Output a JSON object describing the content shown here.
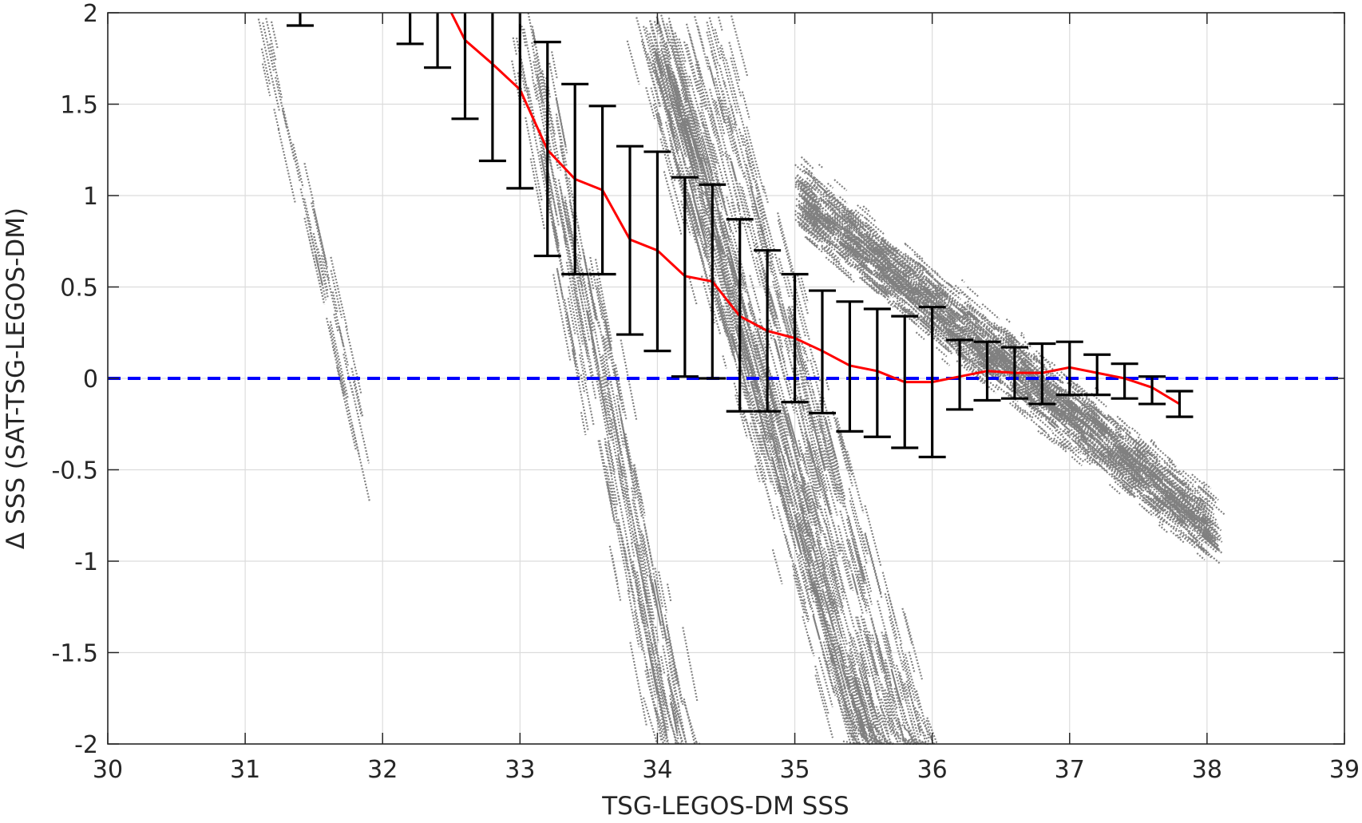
{
  "chart_data": {
    "type": "scatter",
    "title": "",
    "xlabel": "TSG-LEGOS-DM SSS",
    "ylabel": "Δ SSS (SAT-TSG-LEGOS-DM)",
    "xlim": [
      30,
      39
    ],
    "ylim": [
      -2,
      2
    ],
    "xticks": [
      "30",
      "31",
      "32",
      "33",
      "34",
      "35",
      "36",
      "37",
      "38",
      "39"
    ],
    "yticks": [
      "-2",
      "-1.5",
      "-1",
      "-0.5",
      "0",
      "0.5",
      "1",
      "1.5",
      "2"
    ],
    "grid": true,
    "colors": {
      "scatter": "#808080",
      "mean_line": "#ff0000",
      "zero_line": "#0000ff",
      "error_bars": "#000000",
      "grid": "#dcdcdc",
      "axes": "#262626"
    },
    "series": [
      {
        "type": "scatter",
        "description_free": true,
        "clusters": [
          {
            "x": [
              30.9,
              31.8
            ],
            "slope": -3.0,
            "center": [
              31.3,
              1.4
            ],
            "spread": 0.25,
            "count": 60
          },
          {
            "x": [
              32.2,
              34.6
            ],
            "slope": -3.5,
            "center": [
              33.3,
              1.0
            ],
            "spread": 0.6,
            "count": 500
          },
          {
            "x": [
              33.0,
              36.0
            ],
            "slope": -2.5,
            "center": [
              34.6,
              0.35
            ],
            "spread": 0.45,
            "count": 1400
          },
          {
            "x": [
              34.0,
              36.2
            ],
            "slope": -2.6,
            "center": [
              35.3,
              -0.6
            ],
            "spread": 0.45,
            "count": 450
          },
          {
            "x": [
              35.0,
              38.0
            ],
            "slope": -0.6,
            "center": [
              36.6,
              0.05
            ],
            "spread": 0.18,
            "count": 2600
          }
        ]
      },
      {
        "type": "line",
        "name_free": true,
        "x": [
          32.5,
          32.6,
          32.8,
          33.0,
          33.2,
          33.4,
          33.6,
          33.8,
          34.0,
          34.2,
          34.4,
          34.6,
          34.8,
          35.0,
          35.2,
          35.4,
          35.6,
          35.8,
          36.0,
          36.2,
          36.4,
          36.6,
          36.8,
          37.0,
          37.2,
          37.4,
          37.6,
          37.8
        ],
        "y": [
          2.0,
          1.85,
          1.72,
          1.58,
          1.25,
          1.09,
          1.03,
          0.76,
          0.7,
          0.56,
          0.53,
          0.34,
          0.26,
          0.22,
          0.15,
          0.07,
          0.04,
          -0.02,
          -0.02,
          0.01,
          0.04,
          0.03,
          0.03,
          0.06,
          0.03,
          0.0,
          -0.05,
          -0.14
        ]
      },
      {
        "type": "errorbar",
        "x": [
          31.4,
          32.2,
          32.4,
          32.6,
          32.8,
          33.0,
          33.2,
          33.4,
          33.6,
          33.8,
          34.0,
          34.2,
          34.4,
          34.6,
          34.8,
          35.0,
          35.2,
          35.4,
          35.6,
          35.8,
          36.0,
          36.2,
          36.4,
          36.6,
          36.8,
          37.0,
          37.2,
          37.4,
          37.6,
          37.8
        ],
        "low": [
          1.93,
          1.83,
          1.7,
          1.42,
          1.19,
          1.04,
          0.67,
          0.57,
          0.57,
          0.24,
          0.15,
          0.01,
          0.0,
          -0.18,
          -0.18,
          -0.13,
          -0.19,
          -0.29,
          -0.32,
          -0.38,
          -0.43,
          -0.17,
          -0.12,
          -0.11,
          -0.14,
          -0.09,
          -0.09,
          -0.11,
          -0.14,
          -0.21
        ],
        "high": [
          2.05,
          2.1,
          2.1,
          2.1,
          2.1,
          2.1,
          1.84,
          1.61,
          1.49,
          1.27,
          1.24,
          1.1,
          1.06,
          0.87,
          0.7,
          0.57,
          0.48,
          0.42,
          0.38,
          0.34,
          0.39,
          0.21,
          0.2,
          0.17,
          0.19,
          0.2,
          0.13,
          0.08,
          0.01,
          -0.07
        ]
      },
      {
        "type": "hline",
        "y": 0,
        "style": "dashed"
      }
    ]
  }
}
